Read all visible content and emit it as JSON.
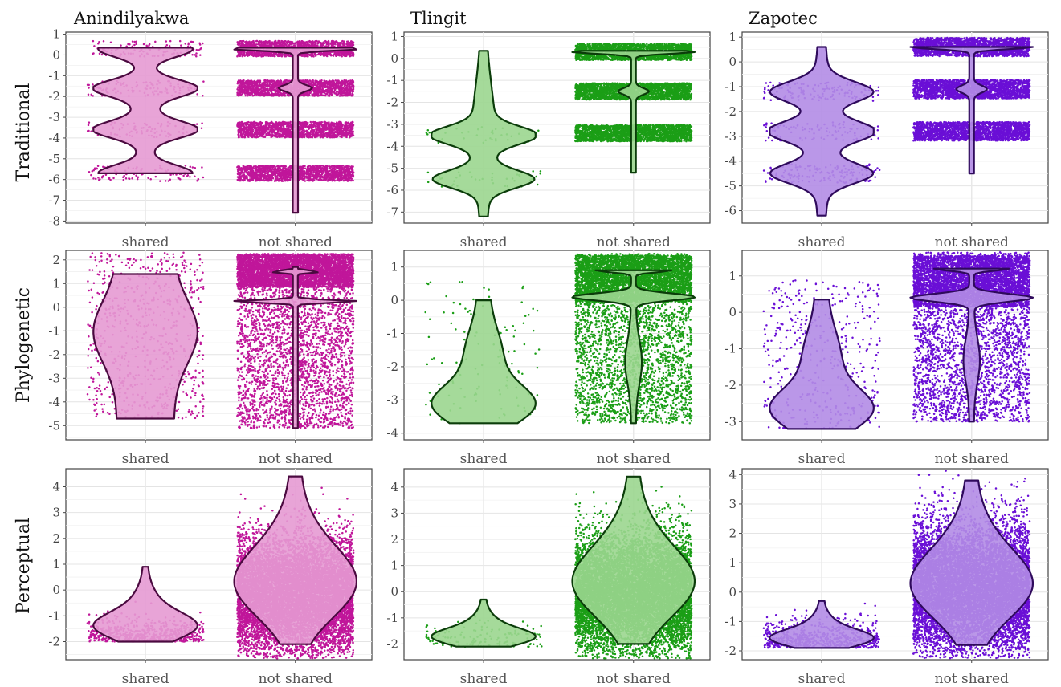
{
  "chart_data": {
    "type": "violin",
    "title": "",
    "columns": [
      "Anindilyakwa",
      "Tlingit",
      "Zapotec"
    ],
    "rows": [
      "Traditional",
      "Phylogenetic",
      "Perceptual"
    ],
    "categories": [
      "shared",
      "not shared"
    ],
    "colors": {
      "Anindilyakwa": {
        "points": "#c0169a",
        "fill": "#e59ad3",
        "outline": "#4b0a40"
      },
      "Tlingit": {
        "points": "#1b9e16",
        "fill": "#9bd68f",
        "outline": "#0b3d0a"
      },
      "Zapotec": {
        "points": "#6a0fd6",
        "fill": "#b38ce6",
        "outline": "#2f0a5c"
      }
    },
    "panels": [
      {
        "language": "Anindilyakwa",
        "measure": "Traditional",
        "ylim": [
          -8.1,
          1.1
        ],
        "yticks": [
          "1",
          "0",
          "-1",
          "-2",
          "-3",
          "-4",
          "-5",
          "-6",
          "-7",
          "-8"
        ],
        "shared": {
          "min": -5.7,
          "max": 0.35,
          "bands": [
            0.3,
            -1.6,
            -3.6,
            -5.7
          ],
          "n_points": 420
        },
        "not_shared": {
          "min": -7.6,
          "max": 0.35,
          "bands": [
            0.3,
            -1.6,
            -3.6,
            -5.7
          ],
          "n_points": 6000
        }
      },
      {
        "language": "Tlingit",
        "measure": "Traditional",
        "ylim": [
          -7.5,
          1.2
        ],
        "yticks": [
          "1",
          "0",
          "-1",
          "-2",
          "-3",
          "-4",
          "-5",
          "-6",
          "-7"
        ],
        "shared": {
          "min": -7.2,
          "max": 0.35,
          "bands": [
            -3.5,
            -5.5
          ],
          "n_points": 80
        },
        "not_shared": {
          "min": -5.2,
          "max": 0.35,
          "bands": [
            0.3,
            -1.5,
            -3.4
          ],
          "n_points": 6000
        }
      },
      {
        "language": "Zapotec",
        "measure": "Traditional",
        "ylim": [
          -6.5,
          1.2
        ],
        "yticks": [
          "1",
          "0",
          "-1",
          "-2",
          "-3",
          "-4",
          "-5",
          "-6"
        ],
        "shared": {
          "min": -6.2,
          "max": 0.6,
          "bands": [
            -1.2,
            -2.8,
            -4.5
          ],
          "n_points": 380
        },
        "not_shared": {
          "min": -4.5,
          "max": 0.6,
          "bands": [
            0.6,
            -1.1,
            -2.8
          ],
          "n_points": 6000
        }
      },
      {
        "language": "Anindilyakwa",
        "measure": "Phylogenetic",
        "ylim": [
          -5.6,
          2.4
        ],
        "yticks": [
          "2",
          "1",
          "0",
          "-1",
          "-2",
          "-3",
          "-4",
          "-5"
        ],
        "shared": {
          "min": -4.7,
          "max": 1.4,
          "n_points": 700
        },
        "not_shared": {
          "min": -5.1,
          "max": 1.7,
          "n_points": 7000
        }
      },
      {
        "language": "Tlingit",
        "measure": "Phylogenetic",
        "ylim": [
          -4.2,
          1.5
        ],
        "yticks": [
          "1",
          "0",
          "-1",
          "-2",
          "-3",
          "-4"
        ],
        "shared": {
          "min": -3.7,
          "max": 0.0,
          "n_points": 120
        },
        "not_shared": {
          "min": -3.7,
          "max": 0.9,
          "n_points": 7000
        }
      },
      {
        "language": "Zapotec",
        "measure": "Phylogenetic",
        "ylim": [
          -3.5,
          1.7
        ],
        "yticks": [
          "1",
          "0",
          "-1",
          "-2",
          "-3"
        ],
        "shared": {
          "min": -3.2,
          "max": 0.35,
          "n_points": 420
        },
        "not_shared": {
          "min": -3.0,
          "max": 1.2,
          "n_points": 7000
        }
      },
      {
        "language": "Anindilyakwa",
        "measure": "Perceptual",
        "ylim": [
          -2.7,
          4.7
        ],
        "yticks": [
          "4",
          "3",
          "2",
          "1",
          "0",
          "-1",
          "-2"
        ],
        "shared": {
          "min": -2.0,
          "max": 0.9,
          "n_points": 600
        },
        "not_shared": {
          "min": -2.1,
          "max": 4.4,
          "n_points": 9000
        }
      },
      {
        "language": "Tlingit",
        "measure": "Perceptual",
        "ylim": [
          -2.6,
          4.7
        ],
        "yticks": [
          "4",
          "3",
          "2",
          "1",
          "0",
          "-1",
          "-2"
        ],
        "shared": {
          "min": -2.1,
          "max": -0.3,
          "n_points": 140
        },
        "not_shared": {
          "min": -2.0,
          "max": 4.4,
          "n_points": 9000
        }
      },
      {
        "language": "Zapotec",
        "measure": "Perceptual",
        "ylim": [
          -2.3,
          4.2
        ],
        "yticks": [
          "4",
          "3",
          "2",
          "1",
          "0",
          "-1",
          "-2"
        ],
        "shared": {
          "min": -1.9,
          "max": -0.3,
          "n_points": 620
        },
        "not_shared": {
          "min": -1.8,
          "max": 3.8,
          "n_points": 9000
        }
      }
    ]
  }
}
